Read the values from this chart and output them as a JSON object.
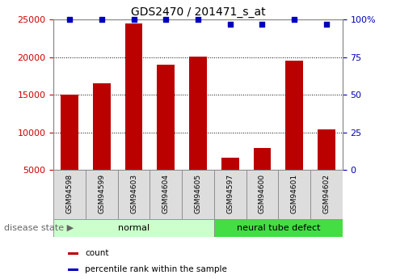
{
  "title": "GDS2470 / 201471_s_at",
  "samples": [
    "GSM94598",
    "GSM94599",
    "GSM94603",
    "GSM94604",
    "GSM94605",
    "GSM94597",
    "GSM94600",
    "GSM94601",
    "GSM94602"
  ],
  "counts": [
    15000,
    16500,
    24500,
    19000,
    20100,
    6700,
    7900,
    19500,
    10400
  ],
  "percentiles": [
    100,
    100,
    100,
    100,
    100,
    97,
    97,
    100,
    97
  ],
  "normal_indices": [
    0,
    1,
    2,
    3,
    4
  ],
  "defect_indices": [
    5,
    6,
    7,
    8
  ],
  "bar_color": "#BB0000",
  "dot_color": "#0000BB",
  "ylim_left": [
    5000,
    25000
  ],
  "yticks_left": [
    5000,
    10000,
    15000,
    20000,
    25000
  ],
  "ylim_right": [
    0,
    100
  ],
  "yticks_right": [
    0,
    25,
    50,
    75,
    100
  ],
  "normal_label": "normal",
  "defect_label": "neural tube defect",
  "disease_state_label": "disease state",
  "disease_arrow": "▶",
  "normal_color": "#CCFFCC",
  "defect_color": "#44DD44",
  "tick_label_color_left": "#CC0000",
  "tick_label_color_right": "#0000BB",
  "legend_count_label": "count",
  "legend_pct_label": "percentile rank within the sample",
  "xticklabel_bg": "#DDDDDD",
  "grid_color": "#000000",
  "pct_dot_size": 20
}
